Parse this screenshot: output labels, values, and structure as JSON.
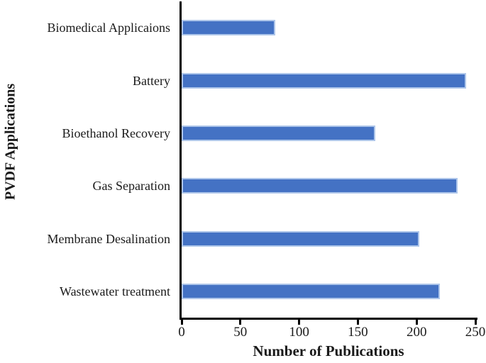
{
  "chart_data": {
    "type": "bar",
    "orientation": "horizontal",
    "categories": [
      "Biomedical Applicaions",
      "Battery",
      "Bioethanol Recovery",
      "Gas Separation",
      "Membrane Desalination",
      "Wastewater treatment"
    ],
    "values": [
      80,
      242,
      165,
      235,
      202,
      220
    ],
    "title": "",
    "xlabel": "Number of Publications",
    "ylabel": "PVDF Applications",
    "xticks": [
      0,
      50,
      100,
      150,
      200,
      250
    ],
    "xlim": [
      0,
      250
    ],
    "legend": "none",
    "grid": "off",
    "colors": {
      "bar_fill": "#4472C4",
      "bar_border": "#AEC6EA",
      "axis": "#000000",
      "text": "#1a1a1a",
      "background": "#FFFFFF"
    }
  }
}
